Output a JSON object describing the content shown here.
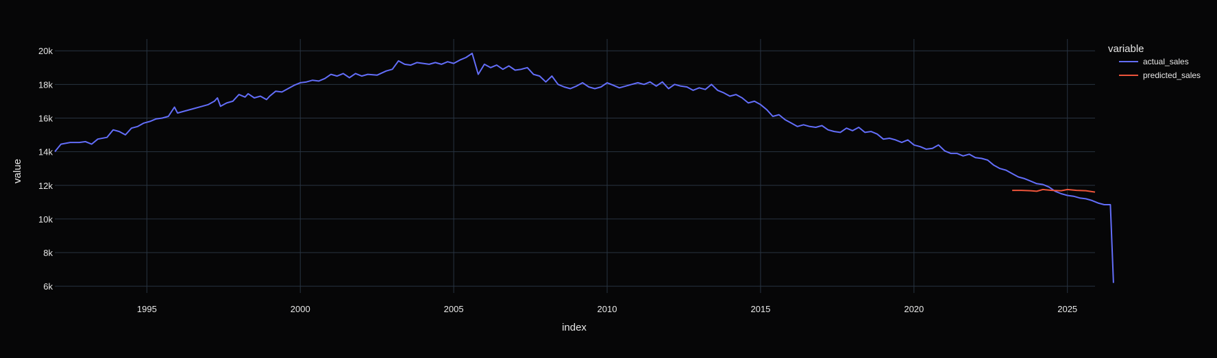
{
  "chart_data": {
    "type": "line",
    "xlabel": "index",
    "ylabel": "value",
    "xlim": [
      1992.0,
      2025.9
    ],
    "ylim": [
      5600,
      20700
    ],
    "x_ticks": [
      {
        "value": 1995,
        "label": "1995"
      },
      {
        "value": 2000,
        "label": "2000"
      },
      {
        "value": 2005,
        "label": "2005"
      },
      {
        "value": 2010,
        "label": "2010"
      },
      {
        "value": 2015,
        "label": "2015"
      },
      {
        "value": 2020,
        "label": "2020"
      },
      {
        "value": 2025,
        "label": "2025"
      }
    ],
    "y_ticks": [
      {
        "value": 6000,
        "label": "6k"
      },
      {
        "value": 8000,
        "label": "8k"
      },
      {
        "value": 10000,
        "label": "10k"
      },
      {
        "value": 12000,
        "label": "12k"
      },
      {
        "value": 14000,
        "label": "14k"
      },
      {
        "value": 16000,
        "label": "16k"
      },
      {
        "value": 18000,
        "label": "18k"
      },
      {
        "value": 20000,
        "label": "20k"
      }
    ],
    "grid": true,
    "legend": {
      "title": "variable",
      "placement": "top-right"
    },
    "series": [
      {
        "name": "actual_sales",
        "color": "#636efa",
        "points": [
          [
            1992.0,
            14000
          ],
          [
            1992.2,
            14450
          ],
          [
            1992.5,
            14550
          ],
          [
            1992.8,
            14550
          ],
          [
            1993.0,
            14600
          ],
          [
            1993.2,
            14450
          ],
          [
            1993.4,
            14750
          ],
          [
            1993.7,
            14850
          ],
          [
            1993.9,
            15300
          ],
          [
            1994.1,
            15200
          ],
          [
            1994.3,
            15000
          ],
          [
            1994.5,
            15400
          ],
          [
            1994.7,
            15500
          ],
          [
            1994.9,
            15700
          ],
          [
            1995.1,
            15800
          ],
          [
            1995.3,
            15950
          ],
          [
            1995.5,
            16000
          ],
          [
            1995.7,
            16100
          ],
          [
            1995.9,
            16650
          ],
          [
            1996.0,
            16300
          ],
          [
            1996.2,
            16400
          ],
          [
            1996.5,
            16550
          ],
          [
            1996.8,
            16700
          ],
          [
            1997.0,
            16800
          ],
          [
            1997.2,
            17000
          ],
          [
            1997.3,
            17200
          ],
          [
            1997.4,
            16700
          ],
          [
            1997.6,
            16900
          ],
          [
            1997.8,
            17000
          ],
          [
            1998.0,
            17400
          ],
          [
            1998.2,
            17250
          ],
          [
            1998.3,
            17450
          ],
          [
            1998.5,
            17200
          ],
          [
            1998.7,
            17300
          ],
          [
            1998.9,
            17100
          ],
          [
            1999.0,
            17300
          ],
          [
            1999.2,
            17600
          ],
          [
            1999.4,
            17550
          ],
          [
            1999.6,
            17750
          ],
          [
            1999.8,
            17950
          ],
          [
            2000.0,
            18100
          ],
          [
            2000.2,
            18150
          ],
          [
            2000.4,
            18250
          ],
          [
            2000.6,
            18200
          ],
          [
            2000.8,
            18350
          ],
          [
            2001.0,
            18600
          ],
          [
            2001.2,
            18500
          ],
          [
            2001.4,
            18650
          ],
          [
            2001.6,
            18400
          ],
          [
            2001.8,
            18650
          ],
          [
            2002.0,
            18500
          ],
          [
            2002.2,
            18600
          ],
          [
            2002.5,
            18550
          ],
          [
            2002.8,
            18800
          ],
          [
            2003.0,
            18900
          ],
          [
            2003.2,
            19400
          ],
          [
            2003.4,
            19200
          ],
          [
            2003.6,
            19150
          ],
          [
            2003.8,
            19300
          ],
          [
            2004.0,
            19250
          ],
          [
            2004.2,
            19200
          ],
          [
            2004.4,
            19300
          ],
          [
            2004.6,
            19200
          ],
          [
            2004.8,
            19350
          ],
          [
            2005.0,
            19250
          ],
          [
            2005.2,
            19450
          ],
          [
            2005.4,
            19600
          ],
          [
            2005.6,
            19850
          ],
          [
            2005.8,
            18600
          ],
          [
            2006.0,
            19200
          ],
          [
            2006.2,
            19000
          ],
          [
            2006.4,
            19150
          ],
          [
            2006.6,
            18900
          ],
          [
            2006.8,
            19100
          ],
          [
            2007.0,
            18850
          ],
          [
            2007.2,
            18900
          ],
          [
            2007.4,
            19000
          ],
          [
            2007.6,
            18600
          ],
          [
            2007.8,
            18500
          ],
          [
            2008.0,
            18150
          ],
          [
            2008.2,
            18500
          ],
          [
            2008.4,
            18000
          ],
          [
            2008.6,
            17850
          ],
          [
            2008.8,
            17750
          ],
          [
            2009.0,
            17900
          ],
          [
            2009.2,
            18100
          ],
          [
            2009.4,
            17850
          ],
          [
            2009.6,
            17750
          ],
          [
            2009.8,
            17850
          ],
          [
            2010.0,
            18100
          ],
          [
            2010.2,
            17950
          ],
          [
            2010.4,
            17800
          ],
          [
            2010.6,
            17900
          ],
          [
            2010.8,
            18000
          ],
          [
            2011.0,
            18100
          ],
          [
            2011.2,
            18000
          ],
          [
            2011.4,
            18150
          ],
          [
            2011.6,
            17900
          ],
          [
            2011.8,
            18150
          ],
          [
            2012.0,
            17750
          ],
          [
            2012.2,
            18000
          ],
          [
            2012.4,
            17900
          ],
          [
            2012.6,
            17850
          ],
          [
            2012.8,
            17650
          ],
          [
            2013.0,
            17800
          ],
          [
            2013.2,
            17700
          ],
          [
            2013.4,
            18000
          ],
          [
            2013.6,
            17650
          ],
          [
            2013.8,
            17500
          ],
          [
            2014.0,
            17300
          ],
          [
            2014.2,
            17400
          ],
          [
            2014.4,
            17200
          ],
          [
            2014.6,
            16900
          ],
          [
            2014.8,
            17000
          ],
          [
            2015.0,
            16800
          ],
          [
            2015.2,
            16500
          ],
          [
            2015.4,
            16100
          ],
          [
            2015.6,
            16200
          ],
          [
            2015.8,
            15900
          ],
          [
            2016.0,
            15700
          ],
          [
            2016.2,
            15500
          ],
          [
            2016.4,
            15600
          ],
          [
            2016.6,
            15500
          ],
          [
            2016.8,
            15450
          ],
          [
            2017.0,
            15550
          ],
          [
            2017.2,
            15300
          ],
          [
            2017.4,
            15200
          ],
          [
            2017.6,
            15150
          ],
          [
            2017.8,
            15400
          ],
          [
            2018.0,
            15250
          ],
          [
            2018.2,
            15450
          ],
          [
            2018.4,
            15150
          ],
          [
            2018.6,
            15200
          ],
          [
            2018.8,
            15050
          ],
          [
            2019.0,
            14750
          ],
          [
            2019.2,
            14800
          ],
          [
            2019.4,
            14700
          ],
          [
            2019.6,
            14550
          ],
          [
            2019.8,
            14700
          ],
          [
            2020.0,
            14400
          ],
          [
            2020.2,
            14300
          ],
          [
            2020.4,
            14150
          ],
          [
            2020.6,
            14200
          ],
          [
            2020.8,
            14400
          ],
          [
            2021.0,
            14050
          ],
          [
            2021.2,
            13900
          ],
          [
            2021.4,
            13900
          ],
          [
            2021.6,
            13750
          ],
          [
            2021.8,
            13850
          ],
          [
            2022.0,
            13650
          ],
          [
            2022.2,
            13600
          ],
          [
            2022.4,
            13500
          ],
          [
            2022.6,
            13200
          ],
          [
            2022.8,
            13000
          ],
          [
            2023.0,
            12900
          ],
          [
            2023.2,
            12700
          ],
          [
            2023.4,
            12500
          ],
          [
            2023.6,
            12400
          ],
          [
            2023.8,
            12250
          ],
          [
            2024.0,
            12100
          ],
          [
            2024.2,
            12050
          ],
          [
            2024.4,
            11900
          ],
          [
            2024.6,
            11650
          ],
          [
            2024.8,
            11500
          ],
          [
            2025.0,
            11400
          ],
          [
            2025.2,
            11350
          ],
          [
            2025.4,
            11250
          ],
          [
            2025.6,
            11200
          ],
          [
            2025.8,
            11100
          ],
          [
            2026.0,
            10950
          ],
          [
            2026.2,
            10850
          ],
          [
            2026.4,
            10850
          ],
          [
            2026.5,
            6200
          ]
        ]
      },
      {
        "name": "predicted_sales",
        "color": "#ef553b",
        "points": [
          [
            2023.2,
            11700
          ],
          [
            2023.5,
            11700
          ],
          [
            2023.8,
            11680
          ],
          [
            2024.0,
            11650
          ],
          [
            2024.2,
            11750
          ],
          [
            2024.5,
            11700
          ],
          [
            2024.8,
            11680
          ],
          [
            2025.0,
            11750
          ],
          [
            2025.3,
            11700
          ],
          [
            2025.6,
            11680
          ],
          [
            2025.9,
            11600
          ]
        ]
      }
    ]
  }
}
